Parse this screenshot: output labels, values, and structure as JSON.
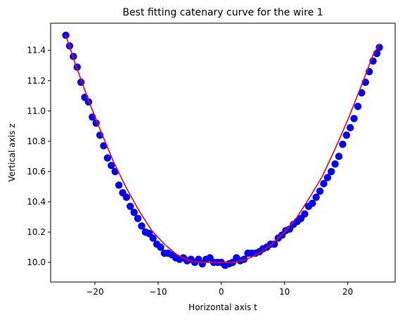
{
  "chart_data": {
    "type": "scatter",
    "title": "Best fitting catenary curve for the wire 1",
    "xlabel": "Horizontal axis t",
    "ylabel": "Vertical axis z",
    "xlim": [
      -27.0,
      27.5
    ],
    "ylim": [
      9.87,
      11.58
    ],
    "xticks": [
      -20,
      -10,
      0,
      10,
      20
    ],
    "xtick_labels": [
      "−20",
      "−10",
      "0",
      "10",
      "20"
    ],
    "yticks": [
      10.0,
      10.2,
      10.4,
      10.6,
      10.8,
      11.0,
      11.2,
      11.4
    ],
    "ytick_labels": [
      "10.0",
      "10.2",
      "10.4",
      "10.6",
      "10.8",
      "11.0",
      "11.2",
      "11.4"
    ],
    "grid": false,
    "series": [
      {
        "kind": "scatter",
        "color": "#0000ff",
        "x": [
          -24.6,
          -24.0,
          -23.4,
          -22.8,
          -22.2,
          -21.6,
          -21.0,
          -20.4,
          -19.8,
          -19.2,
          -18.6,
          -18.0,
          -17.4,
          -16.8,
          -16.2,
          -15.6,
          -15.0,
          -14.4,
          -13.8,
          -13.2,
          -12.6,
          -12.0,
          -11.4,
          -10.8,
          -10.2,
          -9.6,
          -9.0,
          -8.4,
          -7.8,
          -7.2,
          -6.6,
          -6.0,
          -5.4,
          -4.8,
          -4.2,
          -3.6,
          -3.0,
          -2.4,
          -1.8,
          -1.2,
          -0.6,
          0.0,
          0.6,
          1.2,
          1.8,
          2.4,
          3.0,
          3.6,
          4.2,
          4.8,
          5.4,
          6.0,
          6.6,
          7.2,
          7.8,
          8.4,
          9.0,
          9.6,
          10.2,
          10.8,
          11.4,
          12.0,
          12.6,
          13.2,
          13.8,
          14.4,
          15.0,
          15.6,
          16.2,
          16.8,
          17.4,
          18.0,
          18.6,
          19.2,
          19.8,
          20.4,
          21.0,
          21.6,
          22.2,
          22.8,
          23.4,
          24.0,
          24.6,
          25.0
        ],
        "y": [
          11.5,
          11.43,
          11.36,
          11.29,
          11.19,
          11.09,
          11.06,
          10.96,
          10.92,
          10.84,
          10.77,
          10.69,
          10.64,
          10.6,
          10.51,
          10.46,
          10.43,
          10.37,
          10.33,
          10.29,
          10.24,
          10.2,
          10.19,
          10.16,
          10.12,
          10.1,
          10.06,
          10.06,
          10.05,
          10.03,
          10.02,
          10.03,
          10.01,
          10.02,
          10.0,
          10.02,
          9.99,
          10.02,
          10.03,
          10.0,
          10.0,
          10.0,
          9.98,
          9.99,
          10.0,
          10.03,
          10.01,
          10.02,
          10.06,
          10.06,
          10.06,
          10.07,
          10.09,
          10.1,
          10.12,
          10.12,
          10.16,
          10.18,
          10.21,
          10.22,
          10.25,
          10.27,
          10.29,
          10.32,
          10.37,
          10.39,
          10.43,
          10.47,
          10.52,
          10.56,
          10.6,
          10.65,
          10.7,
          10.78,
          10.84,
          10.89,
          10.95,
          11.03,
          11.12,
          11.19,
          11.26,
          11.33,
          11.38,
          11.42
        ]
      },
      {
        "kind": "line",
        "color": "#ff0000",
        "x": [
          -24.6,
          -23.0,
          -21.0,
          -19.0,
          -17.0,
          -15.0,
          -13.0,
          -11.0,
          -9.0,
          -7.0,
          -5.0,
          -3.0,
          -1.0,
          0.5,
          2.0,
          4.0,
          6.0,
          8.0,
          10.0,
          12.0,
          14.0,
          16.0,
          18.0,
          20.0,
          22.0,
          24.0,
          25.0
        ],
        "y": [
          11.5,
          11.3,
          11.07,
          10.86,
          10.66,
          10.49,
          10.34,
          10.21,
          10.12,
          10.05,
          10.01,
          10.0,
          10.0,
          10.0,
          10.0,
          10.02,
          10.06,
          10.12,
          10.2,
          10.3,
          10.43,
          10.57,
          10.75,
          10.94,
          11.15,
          11.37,
          11.44
        ]
      }
    ]
  }
}
